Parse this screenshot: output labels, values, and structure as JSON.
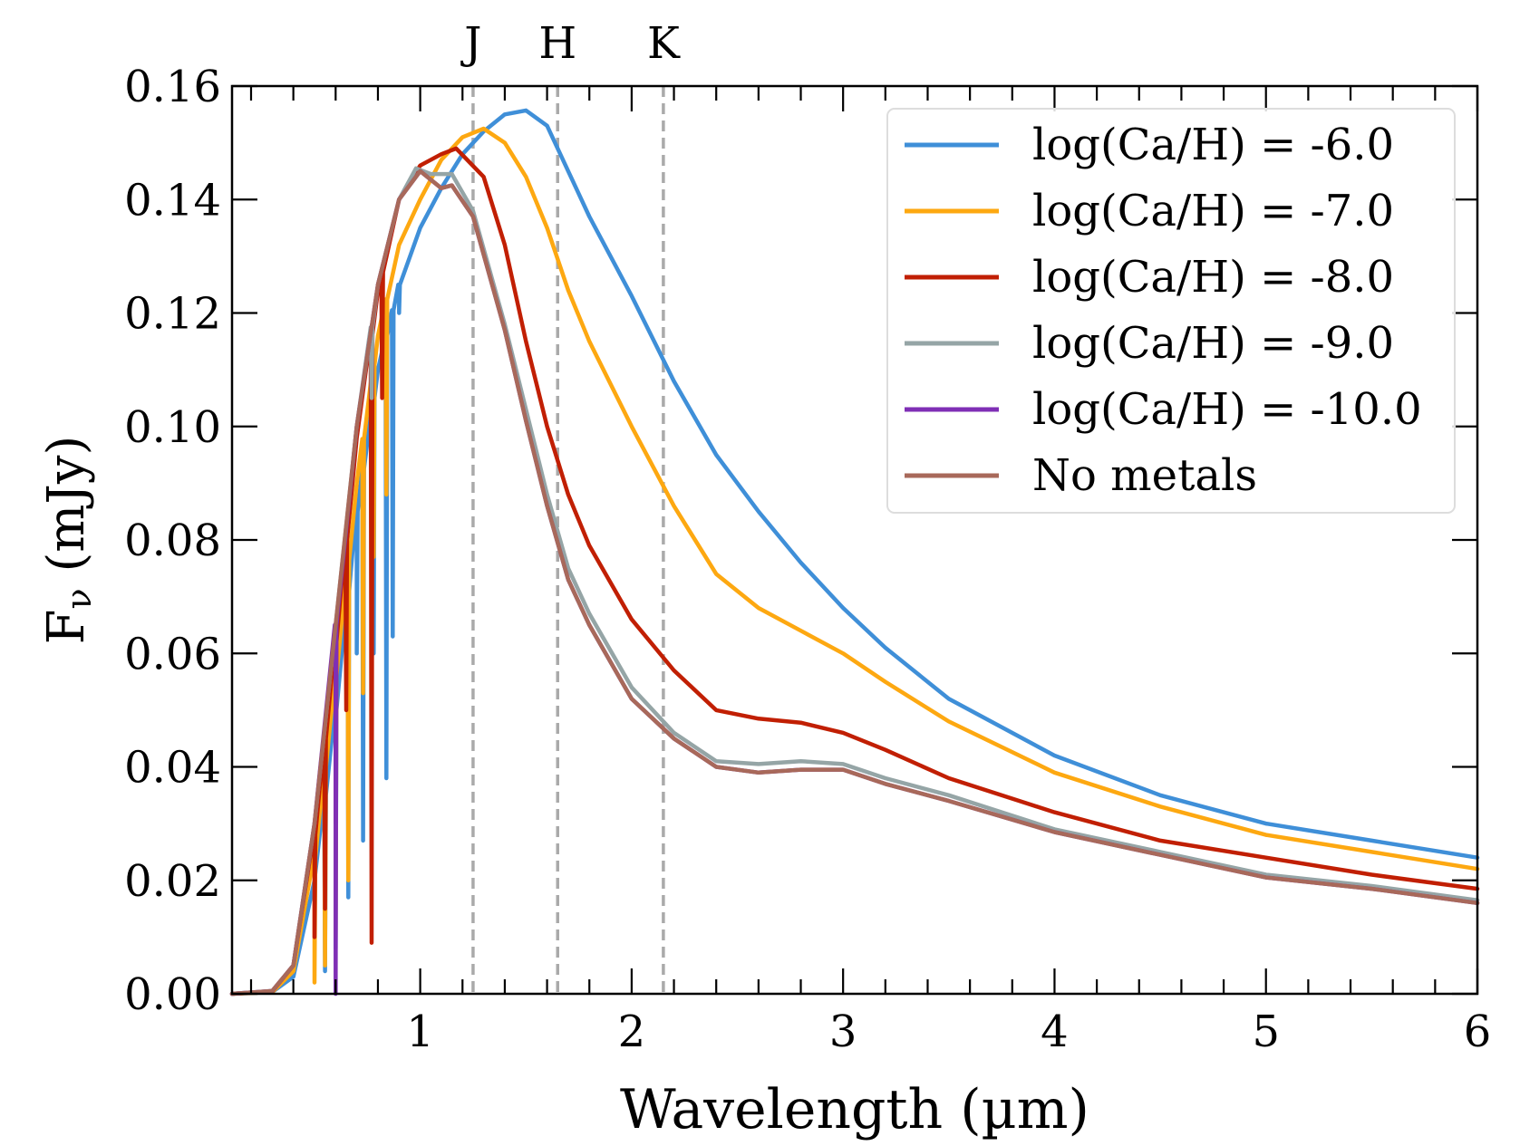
{
  "chart_data": {
    "type": "line",
    "title": "",
    "xlabel": "Wavelength (µm)",
    "ylabel": "Fν (mJy)",
    "ylabel_main": "F",
    "ylabel_sub": "ν",
    "ylabel_unit": " (mJy)",
    "xlim": [
      0.11,
      6
    ],
    "ylim": [
      0,
      0.16
    ],
    "xticks": [
      1,
      2,
      3,
      4,
      5,
      6
    ],
    "xtick_labels": [
      "1",
      "2",
      "3",
      "4",
      "5",
      "6"
    ],
    "yticks": [
      0,
      0.02,
      0.04,
      0.06,
      0.08,
      0.1,
      0.12,
      0.14,
      0.16
    ],
    "ytick_labels": [
      "0.00",
      "0.02",
      "0.04",
      "0.06",
      "0.08",
      "0.10",
      "0.12",
      "0.14",
      "0.16"
    ],
    "grid": false,
    "legend_position": "top-right",
    "bands": [
      {
        "label": "J",
        "x": 1.25
      },
      {
        "label": "H",
        "x": 1.65
      },
      {
        "label": "K",
        "x": 2.15
      }
    ],
    "band_line_color": "#aaaaaa",
    "series": [
      {
        "name": "log(Ca/H) = -6.0",
        "color": "#3f8fd8",
        "x": [
          0.11,
          0.3,
          0.4,
          0.5,
          0.6,
          0.7,
          0.8,
          0.9,
          1.0,
          1.1,
          1.2,
          1.3,
          1.4,
          1.5,
          1.6,
          1.7,
          1.8,
          2.0,
          2.2,
          2.4,
          2.6,
          2.8,
          3.0,
          3.2,
          3.5,
          4.0,
          4.5,
          5.0,
          5.5,
          6.0
        ],
        "y": [
          0,
          0.0003,
          0.003,
          0.02,
          0.05,
          0.085,
          0.11,
          0.125,
          0.135,
          0.142,
          0.148,
          0.152,
          0.155,
          0.1557,
          0.153,
          0.145,
          0.137,
          0.123,
          0.108,
          0.095,
          0.085,
          0.076,
          0.068,
          0.061,
          0.052,
          0.042,
          0.035,
          0.03,
          0.027,
          0.024
        ],
        "dips": [
          [
            0.55,
            0.004
          ],
          [
            0.6,
            0.008
          ],
          [
            0.66,
            0.017
          ],
          [
            0.7,
            0.06
          ],
          [
            0.73,
            0.027
          ],
          [
            0.78,
            0.06
          ],
          [
            0.84,
            0.038
          ],
          [
            0.87,
            0.063
          ],
          [
            0.9,
            0.12
          ]
        ]
      },
      {
        "name": "log(Ca/H) = -7.0",
        "color": "#fda811",
        "x": [
          0.11,
          0.3,
          0.4,
          0.5,
          0.6,
          0.7,
          0.8,
          0.9,
          1.0,
          1.1,
          1.2,
          1.3,
          1.4,
          1.5,
          1.6,
          1.7,
          1.8,
          2.0,
          2.2,
          2.4,
          2.6,
          2.8,
          3.0,
          3.2,
          3.5,
          4.0,
          4.5,
          5.0,
          5.5,
          6.0
        ],
        "y": [
          0,
          0.0003,
          0.004,
          0.024,
          0.056,
          0.09,
          0.116,
          0.132,
          0.14,
          0.147,
          0.151,
          0.1525,
          0.15,
          0.144,
          0.135,
          0.124,
          0.115,
          0.1,
          0.086,
          0.074,
          0.068,
          0.064,
          0.06,
          0.055,
          0.048,
          0.039,
          0.033,
          0.028,
          0.025,
          0.022
        ],
        "dips": [
          [
            0.5,
            0.002
          ],
          [
            0.55,
            0.005
          ],
          [
            0.6,
            0.01
          ],
          [
            0.66,
            0.02
          ],
          [
            0.73,
            0.053
          ],
          [
            0.78,
            0.077
          ],
          [
            0.84,
            0.088
          ]
        ]
      },
      {
        "name": "log(Ca/H) = -8.0",
        "color": "#c11f03",
        "x": [
          0.11,
          0.3,
          0.4,
          0.5,
          0.6,
          0.7,
          0.8,
          0.9,
          1.0,
          1.1,
          1.17,
          1.3,
          1.4,
          1.5,
          1.6,
          1.7,
          1.8,
          2.0,
          2.2,
          2.4,
          2.6,
          2.8,
          3.0,
          3.2,
          3.5,
          4.0,
          4.5,
          5.0,
          5.5,
          6.0
        ],
        "y": [
          0,
          0.0004,
          0.005,
          0.028,
          0.062,
          0.098,
          0.124,
          0.14,
          0.146,
          0.148,
          0.149,
          0.144,
          0.132,
          0.115,
          0.1,
          0.088,
          0.079,
          0.066,
          0.057,
          0.05,
          0.0485,
          0.0478,
          0.046,
          0.043,
          0.038,
          0.032,
          0.027,
          0.024,
          0.021,
          0.0185
        ],
        "dips": [
          [
            0.5,
            0.01
          ],
          [
            0.55,
            0.015
          ],
          [
            0.6,
            0.03
          ],
          [
            0.65,
            0.05
          ],
          [
            0.77,
            0.009
          ],
          [
            0.82,
            0.105
          ]
        ]
      },
      {
        "name": "log(Ca/H) = -9.0",
        "color": "#95a5a6",
        "x": [
          0.11,
          0.3,
          0.4,
          0.5,
          0.6,
          0.7,
          0.8,
          0.9,
          0.98,
          1.05,
          1.15,
          1.25,
          1.4,
          1.5,
          1.6,
          1.7,
          1.8,
          2.0,
          2.2,
          2.4,
          2.6,
          2.8,
          3.0,
          3.2,
          3.5,
          4.0,
          4.5,
          5.0,
          5.5,
          6.0
        ],
        "y": [
          0,
          0.0005,
          0.005,
          0.03,
          0.065,
          0.1,
          0.125,
          0.14,
          0.1455,
          0.1445,
          0.1445,
          0.138,
          0.118,
          0.103,
          0.088,
          0.075,
          0.067,
          0.054,
          0.046,
          0.041,
          0.0405,
          0.041,
          0.0405,
          0.038,
          0.035,
          0.029,
          0.025,
          0.021,
          0.019,
          0.0165
        ],
        "dips": [
          [
            0.77,
            0.105
          ]
        ]
      },
      {
        "name": "log(Ca/H) = -10.0",
        "color": "#7f2fb5",
        "x": [
          0.11,
          0.3,
          0.4,
          0.5,
          0.6,
          0.7,
          0.8,
          0.9,
          1.0,
          1.1,
          1.15,
          1.25,
          1.4,
          1.5,
          1.6,
          1.7,
          1.8,
          2.0,
          2.2,
          2.4,
          2.6,
          2.8,
          3.0,
          3.2,
          3.5,
          4.0,
          4.5,
          5.0,
          5.5,
          6.0
        ],
        "y": [
          0,
          0.0005,
          0.005,
          0.03,
          0.065,
          0.1,
          0.125,
          0.14,
          0.145,
          0.142,
          0.1425,
          0.137,
          0.117,
          0.101,
          0.086,
          0.073,
          0.065,
          0.052,
          0.045,
          0.04,
          0.039,
          0.0395,
          0.0395,
          0.037,
          0.034,
          0.0285,
          0.0245,
          0.0205,
          0.0185,
          0.016
        ],
        "dips": [
          [
            0.6,
            0.0
          ]
        ]
      },
      {
        "name": "No metals",
        "color": "#a8695a",
        "x": [
          0.11,
          0.3,
          0.4,
          0.5,
          0.6,
          0.7,
          0.8,
          0.9,
          1.0,
          1.1,
          1.15,
          1.25,
          1.4,
          1.5,
          1.6,
          1.7,
          1.8,
          2.0,
          2.2,
          2.4,
          2.6,
          2.8,
          3.0,
          3.2,
          3.5,
          4.0,
          4.5,
          5.0,
          5.5,
          6.0
        ],
        "y": [
          0,
          0.0005,
          0.005,
          0.03,
          0.065,
          0.1,
          0.125,
          0.14,
          0.145,
          0.142,
          0.1425,
          0.137,
          0.117,
          0.101,
          0.086,
          0.073,
          0.065,
          0.052,
          0.045,
          0.04,
          0.039,
          0.0395,
          0.0395,
          0.037,
          0.034,
          0.0285,
          0.0245,
          0.0205,
          0.0185,
          0.016
        ],
        "dips": []
      }
    ]
  }
}
